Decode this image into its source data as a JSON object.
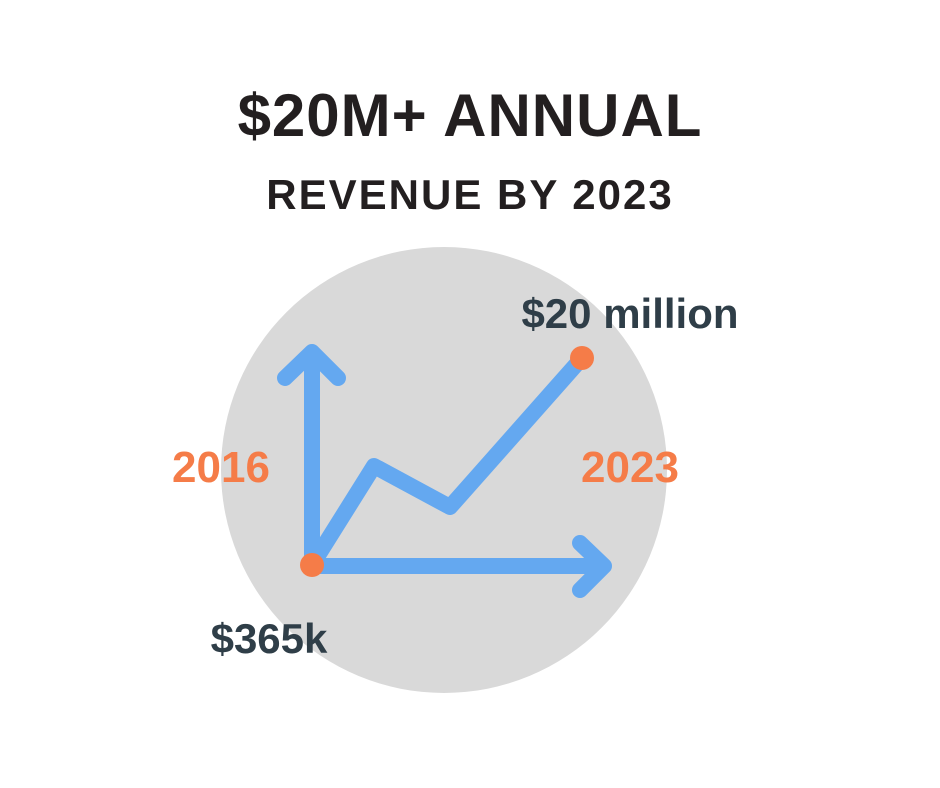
{
  "header": {
    "title": "$20M+ ANNUAL",
    "subtitle": "REVENUE BY 2023"
  },
  "colors": {
    "background": "#ffffff",
    "circle": "#d9d9d9",
    "line": "#64a8f0",
    "accent": "#f57c48",
    "value_text": "#2f3e48",
    "title_text": "#231f20"
  },
  "chart_data": {
    "type": "line",
    "x": [
      "2016",
      "2023"
    ],
    "values": [
      365000,
      20000000
    ],
    "start": {
      "year": "2016",
      "value_label": "$365k"
    },
    "end": {
      "year": "2023",
      "value_label": "$20 million"
    },
    "title": "$20M+ ANNUAL",
    "subtitle": "REVENUE BY 2023",
    "grid": false,
    "legend": "none"
  }
}
